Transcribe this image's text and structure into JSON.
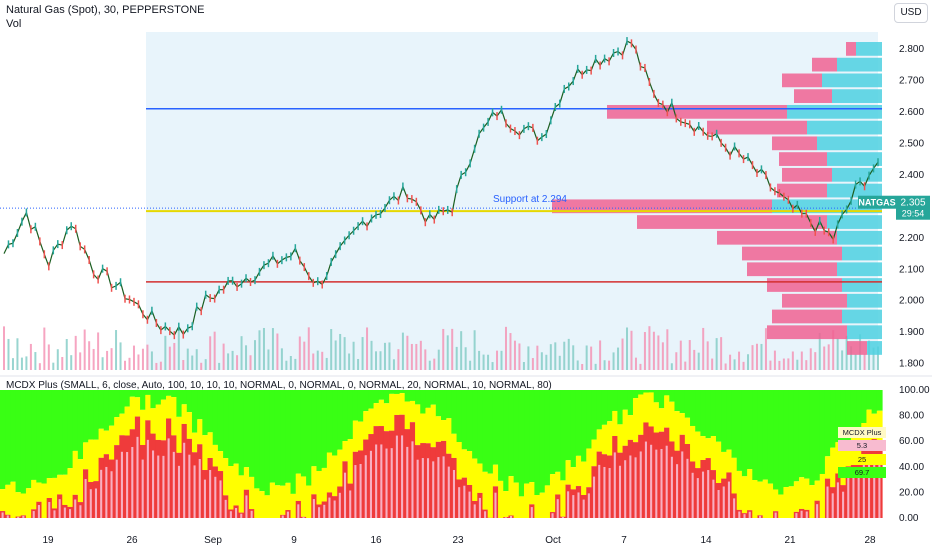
{
  "header": {
    "symbol_line": "Natural Gas (Spot), 30, PEPPERSTONE",
    "vol_label": "Vol",
    "currency_button": "USD"
  },
  "colors": {
    "up": "#26a69a",
    "down": "#ef5350",
    "support_line": "#2962ff",
    "resistance_red": "#d32f2f",
    "yellow_line": "#e6d800",
    "vp_up": "#4dd0e1",
    "vp_down": "#f06292",
    "mcdx_green": "#39ff14",
    "mcdx_yellow": "#ffff00",
    "mcdx_red": "#ef3b3b",
    "mcdx_pink": "#f8bbd0"
  },
  "annotation": {
    "support_label": "Support at 2.294",
    "price_tag_symbol": "NATGAS",
    "price_tag_value": "2.305",
    "price_tag_timer": "29:54"
  },
  "indicator": {
    "title": "MCDX Plus (SMALL, 6, close, Auto, 100, 10, 10, 10, NORMAL, 0, NORMAL, 0, NORMAL, 20, NORMAL, 10, NORMAL, 80)",
    "table_title": "MCDX Plus",
    "table_values": [
      "5.3",
      "25",
      "69.7"
    ]
  },
  "chart_data": [
    {
      "type": "line",
      "title": "Natural Gas (Spot), 30, PEPPERSTONE",
      "y_axis": {
        "ticks": [
          "1.800",
          "1.900",
          "2.000",
          "2.100",
          "2.200",
          "2.300",
          "2.400",
          "2.500",
          "2.600",
          "2.700",
          "2.800"
        ],
        "ylim": [
          1.78,
          2.86
        ]
      },
      "x_axis": {
        "ticks": [
          "19",
          "26",
          "Sep",
          "9",
          "16",
          "23",
          "Oct",
          "7",
          "14",
          "21",
          "28"
        ]
      },
      "series": [
        {
          "name": "NATGAS",
          "x": [
            0,
            5,
            10,
            15,
            20,
            25,
            30,
            35,
            40,
            45,
            50,
            55,
            60,
            65,
            70,
            75,
            80,
            85,
            90,
            95,
            100,
            105,
            110,
            115,
            120,
            125,
            130,
            135,
            140,
            145,
            150,
            155,
            160,
            165,
            170,
            175,
            180,
            185,
            190,
            195
          ],
          "values": [
            2.15,
            2.28,
            2.12,
            2.25,
            2.1,
            2.05,
            1.98,
            1.92,
            1.9,
            2.0,
            2.05,
            2.08,
            2.12,
            2.15,
            2.05,
            2.15,
            2.25,
            2.3,
            2.35,
            2.25,
            2.3,
            2.5,
            2.6,
            2.55,
            2.52,
            2.68,
            2.75,
            2.78,
            2.82,
            2.65,
            2.6,
            2.55,
            2.5,
            2.45,
            2.38,
            2.3,
            2.25,
            2.2,
            2.35,
            2.44
          ]
        }
      ],
      "levels": {
        "support": 2.294,
        "upper_line": 2.61,
        "lower_line": 2.06,
        "last_price": 2.305
      }
    },
    {
      "type": "area",
      "title": "MCDX Plus",
      "y_axis": {
        "ticks": [
          "0.00",
          "20.00",
          "40.00",
          "60.00",
          "80.00",
          "100.00"
        ],
        "ylim": [
          0,
          100
        ]
      }
    }
  ]
}
